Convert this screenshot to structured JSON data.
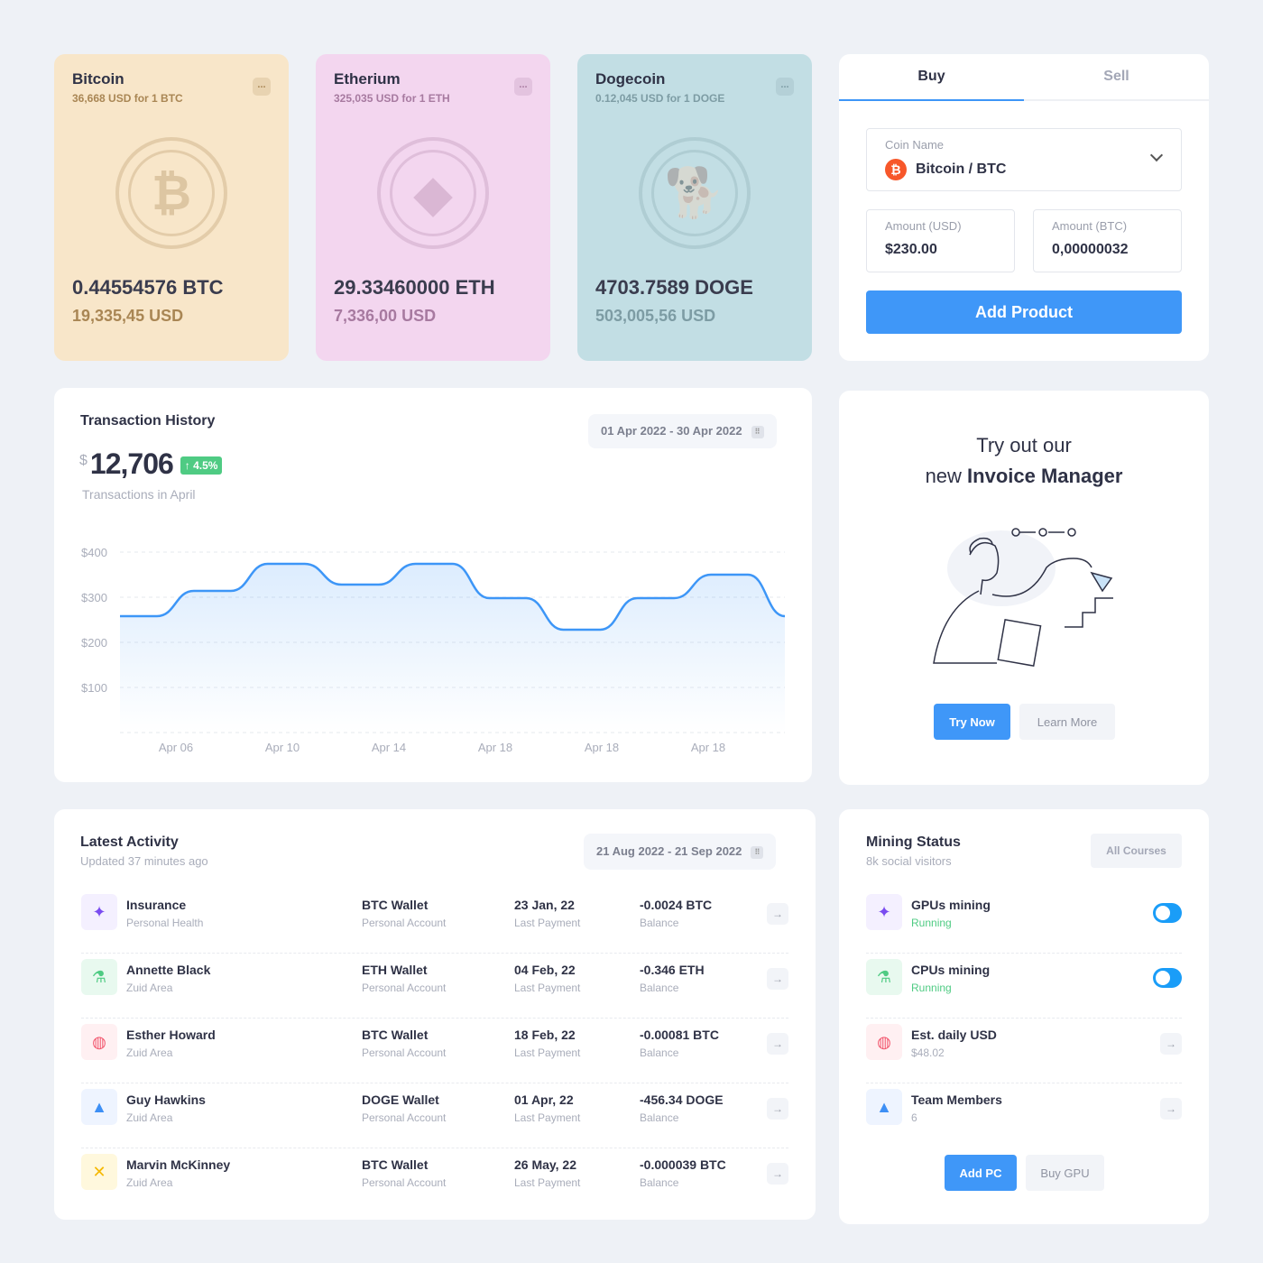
{
  "coins": [
    {
      "name": "Bitcoin",
      "rate": "36,668 USD for 1 BTC",
      "amount": "0.44554576 BTC",
      "usd": "19,335,45 USD",
      "icon": "bitcoin-icon",
      "bg": "#f8e6c9",
      "accent": "#a98654"
    },
    {
      "name": "Etherium",
      "rate": "325,035 USD for 1 ETH",
      "amount": "29.33460000 ETH",
      "usd": "7,336,00 USD",
      "icon": "ethereum-icon",
      "bg": "#f3d6ef",
      "accent": "#a77aa0"
    },
    {
      "name": "Dogecoin",
      "rate": "0.12,045 USD for 1 DOGE",
      "amount": "4703.7589 DOGE",
      "usd": "503,005,56 USD",
      "icon": "dogecoin-icon",
      "bg": "#c2dee4",
      "accent": "#7d9ca4"
    }
  ],
  "more_label": "...",
  "trade": {
    "tabs": [
      "Buy",
      "Sell"
    ],
    "active_tab": "Buy",
    "coin_label": "Coin Name",
    "coin_value": "Bitcoin / BTC",
    "usd_label": "Amount (USD)",
    "usd_value": "$230.00",
    "btc_label": "Amount (BTC)",
    "btc_value": "0,00000032",
    "button": "Add Product"
  },
  "transactions": {
    "title": "Transaction History",
    "date_range": "01 Apr 2022 - 30 Apr 2022",
    "currency": "$",
    "total": "12,706",
    "change": "4.5%",
    "caption": "Transactions in April"
  },
  "chart_data": {
    "type": "area",
    "y_ticks": [
      "$400",
      "$300",
      "$200",
      "$100"
    ],
    "ylim": [
      0,
      400
    ],
    "x_ticks": [
      "Apr 06",
      "Apr 10",
      "Apr  14",
      "Apr 18",
      "Apr 18",
      "Apr 18"
    ],
    "grid": true,
    "color": "#3d96f7",
    "values": [
      258,
      258,
      314,
      314,
      374,
      374,
      328,
      328,
      374,
      374,
      298,
      298,
      228,
      228,
      298,
      298,
      350,
      350,
      258
    ]
  },
  "invoice": {
    "line1": "Try out our",
    "line2_prefix": "new ",
    "line2_bold": "Invoice Manager",
    "try": "Try Now",
    "learn": "Learn More"
  },
  "activity": {
    "title": "Latest Activity",
    "subtitle": "Updated 37 minutes ago",
    "date_range": "21 Aug 2022 - 21 Sep 2022",
    "rows": [
      {
        "name": "Insurance",
        "sub": "Personal Health",
        "wallet": "BTC Wallet",
        "wallet_sub": "Personal Account",
        "date": "23 Jan, 22",
        "date_sub": "Last Payment",
        "amount": "-0.0024 BTC",
        "amount_sub": "Balance",
        "icon": "sparkle-icon"
      },
      {
        "name": "Annette Black",
        "sub": "Zuid Area",
        "wallet": "ETH Wallet",
        "wallet_sub": "Personal Account",
        "date": "04 Feb, 22",
        "date_sub": "Last Payment",
        "amount": "-0.346 ETH",
        "amount_sub": "Balance",
        "icon": "flask-icon"
      },
      {
        "name": "Esther Howard",
        "sub": "Zuid Area",
        "wallet": "BTC Wallet",
        "wallet_sub": "Personal Account",
        "date": "18 Feb, 22",
        "date_sub": "Last Payment",
        "amount": "-0.00081 BTC",
        "amount_sub": "Balance",
        "icon": "lifebuoy-icon"
      },
      {
        "name": "Guy Hawkins",
        "sub": "Zuid Area",
        "wallet": "DOGE Wallet",
        "wallet_sub": "Personal Account",
        "date": "01 Apr, 22",
        "date_sub": "Last Payment",
        "amount": "-456.34 DOGE",
        "amount_sub": "Balance",
        "icon": "triangles-icon"
      },
      {
        "name": "Marvin McKinney",
        "sub": "Zuid Area",
        "wallet": "BTC Wallet",
        "wallet_sub": "Personal Account",
        "date": "26 May, 22",
        "date_sub": "Last Payment",
        "amount": "-0.000039 BTC",
        "amount_sub": "Balance",
        "icon": "cross-icon"
      }
    ]
  },
  "mining": {
    "title": "Mining Status",
    "subtitle": "8k social visitors",
    "all_button": "All Courses",
    "items": [
      {
        "name": "GPUs mining",
        "status": "Running",
        "control": "toggle",
        "on": true,
        "icon": "sparkle-icon"
      },
      {
        "name": "CPUs mining",
        "status": "Running",
        "control": "toggle",
        "on": true,
        "icon": "flask-icon"
      },
      {
        "name": "Est. daily USD",
        "status": "$48.02",
        "control": "arrow",
        "icon": "lifebuoy-icon"
      },
      {
        "name": "Team Members",
        "status": "6",
        "control": "arrow",
        "icon": "triangles-icon"
      }
    ],
    "add": "Add PC",
    "buy": "Buy GPU"
  },
  "arrow_glyph": "→"
}
